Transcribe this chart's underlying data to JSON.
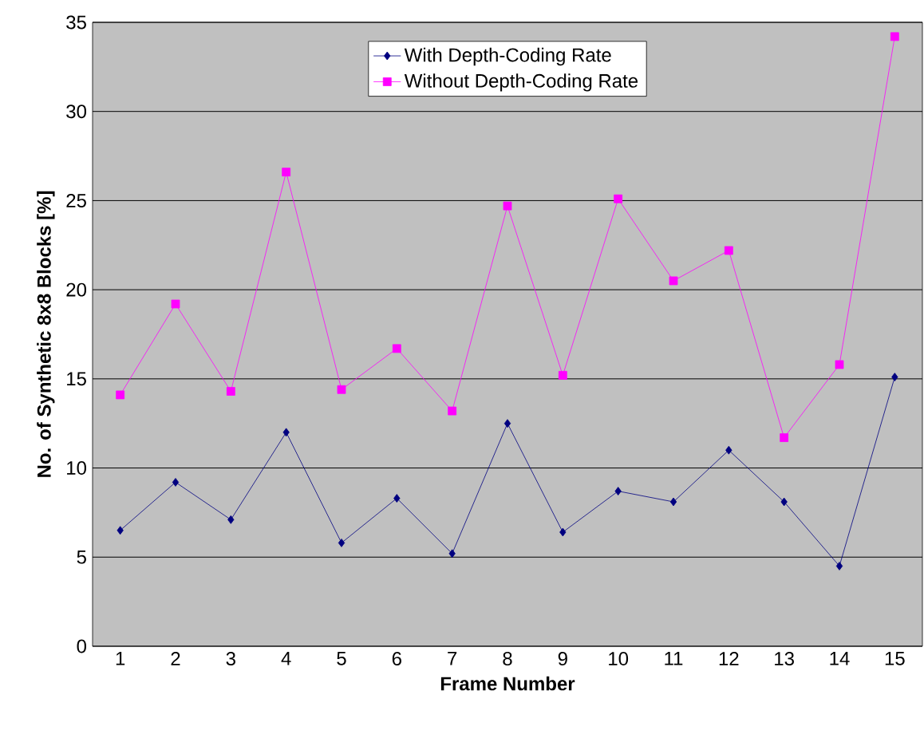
{
  "chart_data": {
    "type": "line",
    "xlabel": "Frame Number",
    "ylabel": "No. of Synthetic 8x8 Blocks [%]",
    "categories": [
      "1",
      "2",
      "3",
      "4",
      "5",
      "6",
      "7",
      "8",
      "9",
      "10",
      "11",
      "12",
      "13",
      "14",
      "15"
    ],
    "series": [
      {
        "name": "With Depth-Coding Rate",
        "color": "#000080",
        "marker": "diamond",
        "values": [
          6.5,
          9.2,
          7.1,
          12.0,
          5.8,
          8.3,
          5.2,
          12.5,
          6.4,
          8.7,
          8.1,
          11.0,
          8.1,
          4.5,
          15.1
        ]
      },
      {
        "name": "Without Depth-Coding Rate",
        "color": "#ff00ff",
        "marker": "square",
        "values": [
          14.1,
          19.2,
          14.3,
          26.6,
          14.4,
          16.7,
          13.2,
          24.7,
          15.2,
          25.1,
          20.5,
          22.2,
          11.7,
          15.8,
          34.2
        ]
      }
    ],
    "ylim": [
      0,
      35
    ],
    "yticks": [
      0,
      5,
      10,
      15,
      20,
      25,
      30,
      35
    ],
    "grid": "y",
    "legend": "top",
    "line_style": "solid"
  }
}
